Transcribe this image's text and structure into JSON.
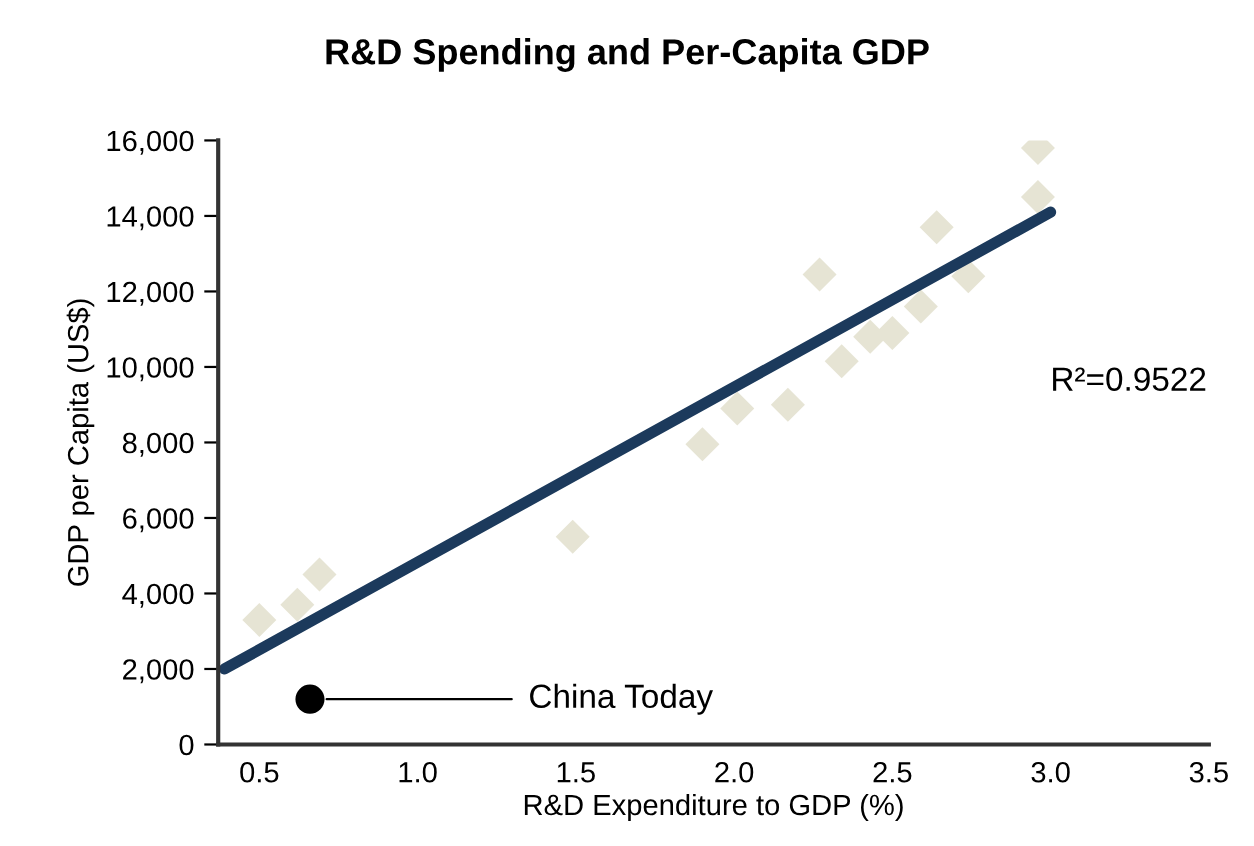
{
  "chart_data": {
    "type": "scatter",
    "title": "R&D Spending and Per-Capita GDP",
    "xlabel": "R&D Expenditure to GDP (%)",
    "ylabel": "GDP per Capita (US$)",
    "series": [
      {
        "marker": "diamond",
        "color": "#e6e4d4",
        "x": [
          0.5,
          0.62,
          0.69,
          1.49,
          1.9,
          2.01,
          2.17,
          2.27,
          2.34,
          2.43,
          2.5,
          2.59,
          2.64,
          2.74,
          2.96,
          2.96
        ],
        "values": [
          3300,
          3700,
          4500,
          5500,
          7950,
          8900,
          9000,
          12450,
          10150,
          10800,
          10900,
          11600,
          13700,
          12400,
          14500,
          15800
        ]
      },
      {
        "type": "line",
        "marker": "none",
        "color": "#1c3a5c",
        "x": [
          0.39,
          3.0
        ],
        "values": [
          2000,
          14100
        ]
      },
      {
        "marker": "circle",
        "color": "#000000",
        "x": [
          0.66
        ],
        "values": [
          1200
        ]
      }
    ],
    "annotations": [
      {
        "text": "China Today",
        "x": 0.66,
        "y": 1200
      },
      "R²=0.9522"
    ],
    "xlim": [
      0.37,
      3.5
    ],
    "xticks": [
      {
        "value": 0.5,
        "label": "0.5"
      },
      {
        "value": 1.0,
        "label": "1.0"
      },
      {
        "value": 1.5,
        "label": "1.5"
      },
      {
        "value": 2.0,
        "label": "2.0"
      },
      {
        "value": 2.5,
        "label": "2.5"
      },
      {
        "value": 3.0,
        "label": "3.0"
      },
      {
        "value": 3.5,
        "label": "3.5"
      }
    ],
    "ylim": [
      0,
      16000
    ],
    "yticks": [
      {
        "value": 0,
        "label": "0"
      },
      {
        "value": 2000,
        "label": "2,000"
      },
      {
        "value": 4000,
        "label": "4,000"
      },
      {
        "value": 6000,
        "label": "6,000"
      },
      {
        "value": 8000,
        "label": "8,000"
      },
      {
        "value": 10000,
        "label": "10,000"
      },
      {
        "value": 12000,
        "label": "12,000"
      },
      {
        "value": 14000,
        "label": "14,000"
      },
      {
        "value": 16000,
        "label": "16,000"
      }
    ],
    "grid": false,
    "legend": false
  }
}
